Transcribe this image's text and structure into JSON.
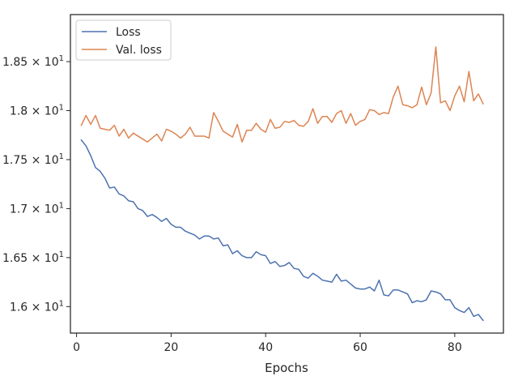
{
  "chart_data": {
    "type": "line",
    "title": "",
    "xlabel": "Epochs",
    "ylabel": "",
    "xlim": [
      -1.3,
      90.3
    ],
    "ylim": [
      15.73,
      18.98
    ],
    "xticks": [
      0,
      20,
      40,
      60,
      80
    ],
    "xtick_labels": [
      "0",
      "20",
      "40",
      "60",
      "80"
    ],
    "yticks": [
      16.0,
      16.5,
      17.0,
      17.5,
      18.0,
      18.5
    ],
    "ytick_labels": [
      {
        "mant": "1.6",
        "exp": "1"
      },
      {
        "mant": "1.65",
        "exp": "1"
      },
      {
        "mant": "1.7",
        "exp": "1"
      },
      {
        "mant": "1.75",
        "exp": "1"
      },
      {
        "mant": "1.8",
        "exp": "1"
      },
      {
        "mant": "1.85",
        "exp": "1"
      }
    ],
    "grid": false,
    "legend_position": "top-left",
    "series": [
      {
        "name": "Loss",
        "color": "#4c72b0",
        "x": [
          1,
          2,
          3,
          4,
          5,
          6,
          7,
          8,
          9,
          10,
          11,
          12,
          13,
          14,
          15,
          16,
          17,
          18,
          19,
          20,
          21,
          22,
          23,
          24,
          25,
          26,
          27,
          28,
          29,
          30,
          31,
          32,
          33,
          34,
          35,
          36,
          37,
          38,
          39,
          40,
          41,
          42,
          43,
          44,
          45,
          46,
          47,
          48,
          49,
          50,
          51,
          52,
          53,
          54,
          55,
          56,
          57,
          58,
          59,
          60,
          61,
          62,
          63,
          64,
          65,
          66,
          67,
          68,
          69,
          70,
          71,
          72,
          73,
          74,
          75,
          76,
          77,
          78,
          79,
          80,
          81,
          82,
          83,
          84,
          85,
          86
        ],
        "values": [
          17.7,
          17.64,
          17.54,
          17.42,
          17.38,
          17.31,
          17.21,
          17.22,
          17.15,
          17.13,
          17.08,
          17.07,
          17.0,
          16.98,
          16.92,
          16.94,
          16.91,
          16.87,
          16.9,
          16.84,
          16.81,
          16.81,
          16.77,
          16.75,
          16.73,
          16.69,
          16.72,
          16.72,
          16.69,
          16.7,
          16.62,
          16.63,
          16.54,
          16.57,
          16.52,
          16.5,
          16.5,
          16.56,
          16.53,
          16.52,
          16.44,
          16.46,
          16.41,
          16.42,
          16.45,
          16.39,
          16.38,
          16.31,
          16.29,
          16.34,
          16.31,
          16.27,
          16.26,
          16.25,
          16.33,
          16.26,
          16.27,
          16.23,
          16.19,
          16.18,
          16.18,
          16.2,
          16.16,
          16.27,
          16.12,
          16.11,
          16.17,
          16.17,
          16.15,
          16.13,
          16.04,
          16.06,
          16.05,
          16.07,
          16.16,
          16.15,
          16.13,
          16.07,
          16.07,
          15.99,
          15.96,
          15.94,
          15.99,
          15.9,
          15.92,
          15.86
        ]
      },
      {
        "name": "Val. loss",
        "color": "#dd8452",
        "x": [
          1,
          2,
          3,
          4,
          5,
          6,
          7,
          8,
          9,
          10,
          11,
          12,
          13,
          14,
          15,
          16,
          17,
          18,
          19,
          20,
          21,
          22,
          23,
          24,
          25,
          26,
          27,
          28,
          29,
          30,
          31,
          32,
          33,
          34,
          35,
          36,
          37,
          38,
          39,
          40,
          41,
          42,
          43,
          44,
          45,
          46,
          47,
          48,
          49,
          50,
          51,
          52,
          53,
          54,
          55,
          56,
          57,
          58,
          59,
          60,
          61,
          62,
          63,
          64,
          65,
          66,
          67,
          68,
          69,
          70,
          71,
          72,
          73,
          74,
          75,
          76,
          77,
          78,
          79,
          80,
          81,
          82,
          83,
          84,
          85,
          86
        ],
        "values": [
          17.85,
          17.95,
          17.86,
          17.95,
          17.82,
          17.81,
          17.8,
          17.85,
          17.74,
          17.81,
          17.72,
          17.77,
          17.74,
          17.71,
          17.68,
          17.72,
          17.76,
          17.69,
          17.81,
          17.79,
          17.76,
          17.72,
          17.76,
          17.83,
          17.74,
          17.74,
          17.74,
          17.72,
          17.98,
          17.89,
          17.79,
          17.76,
          17.73,
          17.86,
          17.68,
          17.8,
          17.8,
          17.87,
          17.81,
          17.78,
          17.91,
          17.82,
          17.83,
          17.89,
          17.88,
          17.9,
          17.85,
          17.84,
          17.89,
          18.02,
          17.87,
          17.94,
          17.94,
          17.88,
          17.97,
          18.0,
          17.87,
          17.97,
          17.85,
          17.89,
          17.91,
          18.01,
          18.0,
          17.96,
          17.98,
          17.97,
          18.14,
          18.25,
          18.06,
          18.05,
          18.03,
          18.06,
          18.24,
          18.06,
          18.18,
          18.65,
          18.08,
          18.1,
          18.0,
          18.15,
          18.25,
          18.09,
          18.4,
          18.1,
          18.17,
          18.07
        ]
      }
    ]
  }
}
